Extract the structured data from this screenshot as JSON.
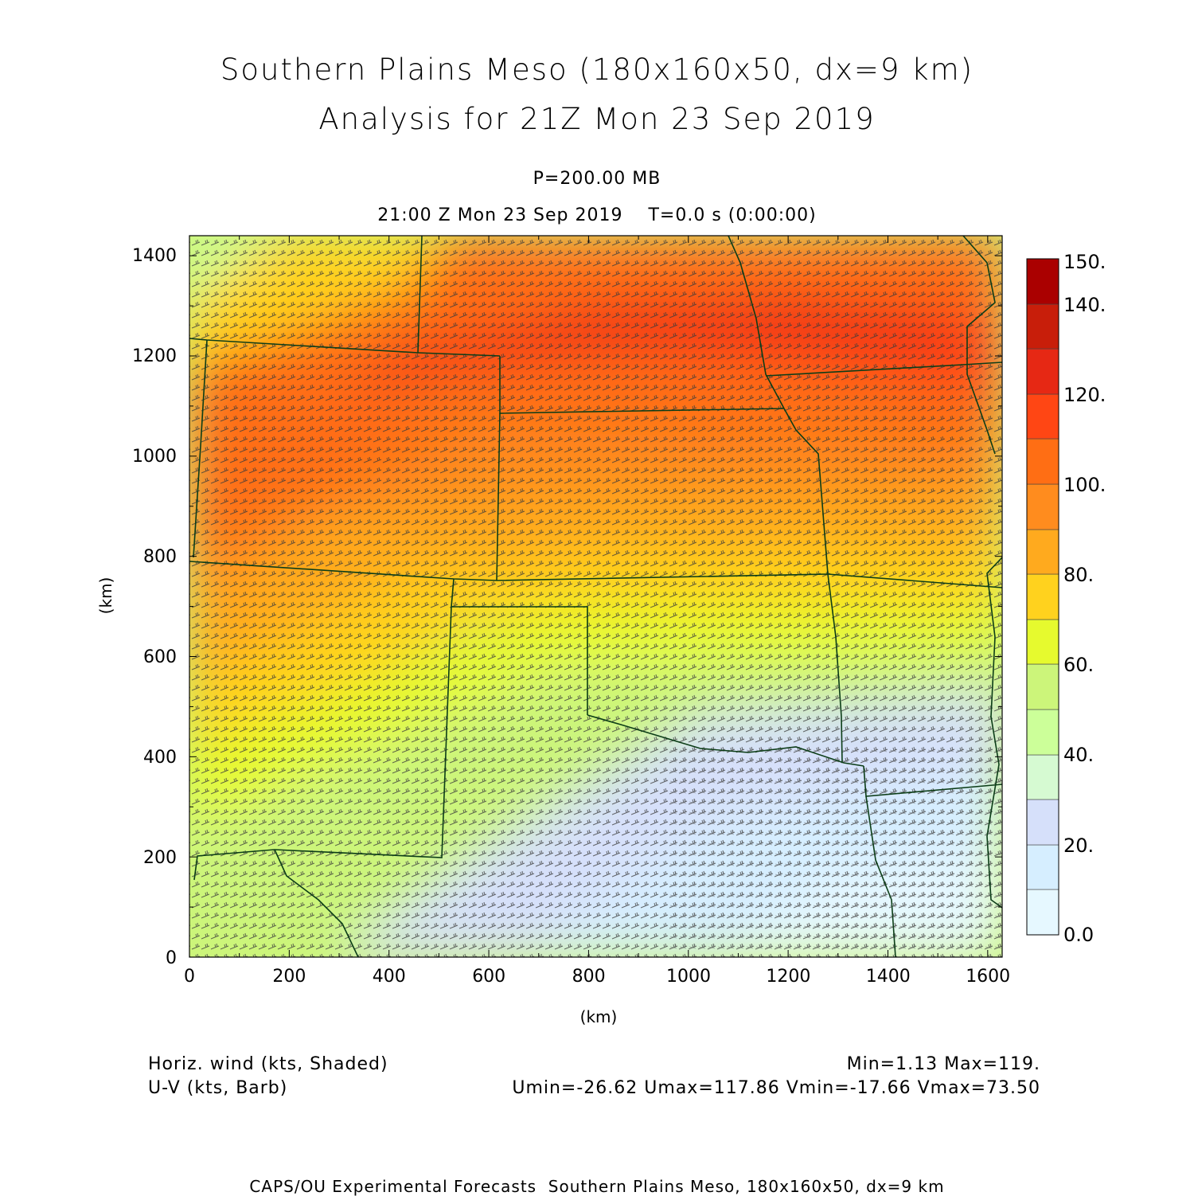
{
  "title": {
    "line1": "Southern Plains Meso (180x160x50, dx=9 km)",
    "line2": "Analysis for 21Z Mon 23 Sep 2019"
  },
  "subtitle": {
    "level": "P=200.00 MB",
    "time": "21:00 Z Mon 23 Sep 2019    T=0.0 s (0:00:00)"
  },
  "axes": {
    "xlabel": "(km)",
    "ylabel": "(km)",
    "xticks": [
      "0",
      "200",
      "400",
      "600",
      "800",
      "1000",
      "1200",
      "1400",
      "1600"
    ],
    "yticks": [
      "0",
      "200",
      "400",
      "600",
      "800",
      "1000",
      "1200",
      "1400"
    ],
    "xrange": [
      0,
      1629
    ],
    "yrange": [
      0,
      1440
    ]
  },
  "colorbar": {
    "labels": [
      "0.0",
      "20.",
      "40.",
      "60.",
      "80.",
      "100.",
      "120.",
      "140.",
      "150."
    ],
    "colors": [
      "#e6f8ff",
      "#d6eeff",
      "#d6e0fa",
      "#d6fad2",
      "#ccff99",
      "#ccf57a",
      "#e6fa2e",
      "#ffd21e",
      "#ffaa1e",
      "#ff8c1e",
      "#ff6e14",
      "#ff4614",
      "#e62814",
      "#c81e0a",
      "#aa0000"
    ]
  },
  "legend": {
    "shaded": "Horiz. wind (kts, Shaded)",
    "barb": "U-V (kts, Barb)",
    "minmax": "Min=1.13 Max=119.",
    "uv": "Umin=-26.62 Umax=117.86 Vmin=-17.66 Vmax=73.50"
  },
  "footer": "CAPS/OU Experimental Forecasts  Southern Plains Meso, 180x160x50, dx=9 km",
  "chart_data": {
    "type": "heatmap",
    "field": "Horiz. wind (kts, Shaded)",
    "x_range_km": [
      0,
      1629
    ],
    "y_range_km": [
      0,
      1440
    ],
    "color_levels": [
      0,
      10,
      20,
      30,
      40,
      50,
      60,
      70,
      80,
      90,
      100,
      110,
      120,
      130,
      140,
      150
    ],
    "min": 1.13,
    "max": 119,
    "jet_max_region_km": {
      "x": [
        250,
        1620
      ],
      "y": [
        1050,
        1320
      ]
    },
    "weak_wind_region_km": {
      "x": [
        400,
        1629
      ],
      "y": [
        0,
        520
      ]
    }
  }
}
